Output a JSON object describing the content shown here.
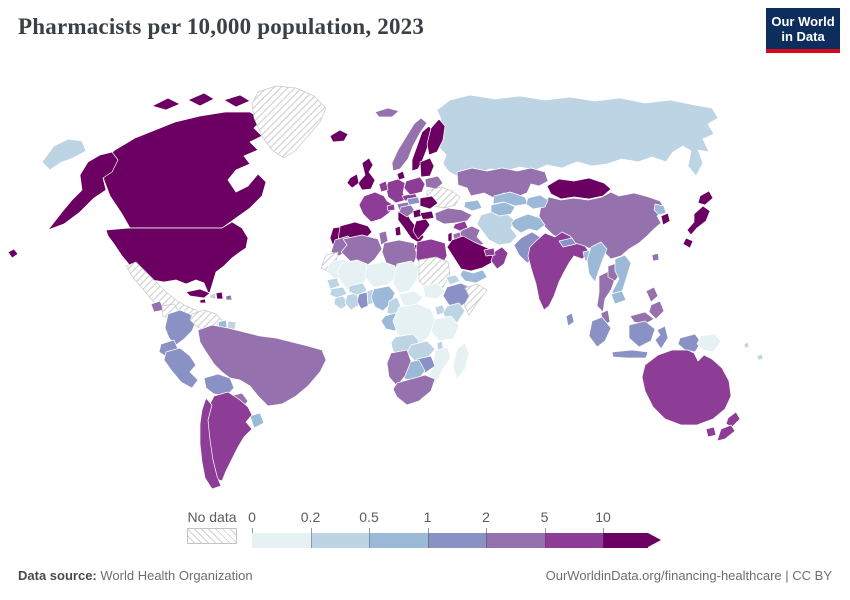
{
  "title": "Pharmacists per 10,000 population, 2023",
  "logo": {
    "line1": "Our World",
    "line2": "in Data",
    "bg_color": "#0d2e5c",
    "bar_color": "#d40a20"
  },
  "legend": {
    "no_data_label": "No data",
    "ticks": [
      "0",
      "0.2",
      "0.5",
      "1",
      "2",
      "5",
      "10"
    ]
  },
  "footer": {
    "source_label": "Data source:",
    "source_value": "World Health Organization",
    "link": "OurWorldinData.org/financing-healthcare | CC BY"
  },
  "chart_data": {
    "type": "choropleth",
    "title": "Pharmacists per 10,000 population",
    "year": 2023,
    "unit": "pharmacists per 10,000 population",
    "legend_position": "bottom",
    "no_data": {
      "label": "No data",
      "pattern": "hatch"
    },
    "bins": [
      {
        "label": "0-0.2",
        "color": "#e6f1f3"
      },
      {
        "label": "0.2-0.5",
        "color": "#bdd4e4"
      },
      {
        "label": "0.5-1",
        "color": "#9cbad8"
      },
      {
        "label": "1-2",
        "color": "#8a92c5"
      },
      {
        "label": "2-5",
        "color": "#9571ae"
      },
      {
        "label": "5-10",
        "color": "#8d3d95"
      },
      {
        "label": "10+",
        "color": "#6b0062"
      }
    ],
    "countries": {
      "canada": "10+",
      "usa": "10+",
      "greenland": "no-data",
      "mexico": "no-data",
      "guatemala": "2-5",
      "honduras-nicaragua": "no-data",
      "costa-rica": "10+",
      "panama": "2-5",
      "cuba": "10+",
      "jamaica": "10+",
      "haiti": "0.2-0.5",
      "dominican-republic": "10+",
      "puerto-rico": "2-5",
      "colombia": "1-2",
      "venezuela": "no-data",
      "guyana": "0.5-1",
      "suriname": "0.2-0.5",
      "ecuador": "1-2",
      "peru": "1-2",
      "brazil": "2-5",
      "bolivia": "1-2",
      "paraguay": "2-5",
      "uruguay": "0.5-1",
      "argentina": "5-10",
      "chile": "5-10",
      "iceland": "10+",
      "ireland": "10+",
      "uk": "10+",
      "portugal": "10+",
      "spain": "10+",
      "france": "5-10",
      "benelux": "5-10",
      "germany": "5-10",
      "denmark": "10+",
      "norway": "2-5",
      "sweden": "10+",
      "finland": "10+",
      "baltics": "10+",
      "poland": "5-10",
      "czech-slovakia": "5-10",
      "switzerland": "5-10",
      "austria": "2-5",
      "hungary": "1-2",
      "croatia-bosnia": "2-5",
      "serbia": "10+",
      "italy": "10+",
      "romania": "10+",
      "bulgaria": "10+",
      "greece": "10+",
      "belarus": "2-5",
      "ukraine": "no-data",
      "russia": "0.2-0.5",
      "turkey": "2-5",
      "caucasus": "0.5-1",
      "syria": "5-10",
      "israel": "10+",
      "jordan": "2-5",
      "iraq": "2-5",
      "saudi-arabia": "10+",
      "yemen": "0.5-1",
      "oman": "5-10",
      "uae": "5-10",
      "iran": "0.2-0.5",
      "afghanistan": "0.5-1",
      "turkmenistan": "0.5-1",
      "uzbekistan": "0.5-1",
      "kyrgyzstan-tajikistan": "0.5-1",
      "kazakhstan": "2-5",
      "china": "2-5",
      "mongolia": "10+",
      "japan": "10+",
      "south-korea": "10+",
      "north-korea": "0.5-1",
      "taiwan": "2-5",
      "india": "5-10",
      "pakistan": "1-2",
      "nepal": "1-2",
      "bangladesh": "0.5-1",
      "sri-lanka": "1-2",
      "myanmar": "0.5-1",
      "thailand": "2-5",
      "laos": "2-5",
      "vietnam": "0.5-1",
      "cambodia": "0.5-1",
      "malaysia": "2-5",
      "indonesia": "1-2",
      "philippines": "2-5",
      "papua-new-guinea": "0-0.2",
      "australia": "5-10",
      "new-zealand": "5-10",
      "pacific-islands": "0.2-0.5",
      "morocco": "2-5",
      "western-sahara": "no-data",
      "algeria": "2-5",
      "tunisia": "2-5",
      "libya": "2-5",
      "egypt": "5-10",
      "mauritania": "0-0.2",
      "mali": "0-0.2",
      "niger": "0-0.2",
      "chad": "0-0.2",
      "sudan": "no-data",
      "eritrea": "0.2-0.5",
      "ethiopia": "1-2",
      "somalia": "no-data",
      "senegal": "0.2-0.5",
      "guinea": "0.2-0.5",
      "sierra-leone-liberia": "0.2-0.5",
      "ivory-coast": "0.2-0.5",
      "ghana": "1-2",
      "burkina-faso": "0.2-0.5",
      "togo-benin": "0.2-0.5",
      "nigeria": "0.5-1",
      "cameroon": "0.2-0.5",
      "central-african-republic": "0-0.2",
      "south-sudan": "0-0.2",
      "gabon-congo": "0.5-1",
      "drc": "0-0.2",
      "uganda": "0.2-0.5",
      "kenya": "0.2-0.5",
      "tanzania": "0-0.2",
      "angola": "0.2-0.5",
      "zambia": "0.2-0.5",
      "malawi": "0.2-0.5",
      "mozambique": "0-0.2",
      "zimbabwe": "1-2",
      "botswana": "0.5-1",
      "namibia": "2-5",
      "south-africa": "2-5",
      "madagascar": "0-0.2"
    }
  }
}
